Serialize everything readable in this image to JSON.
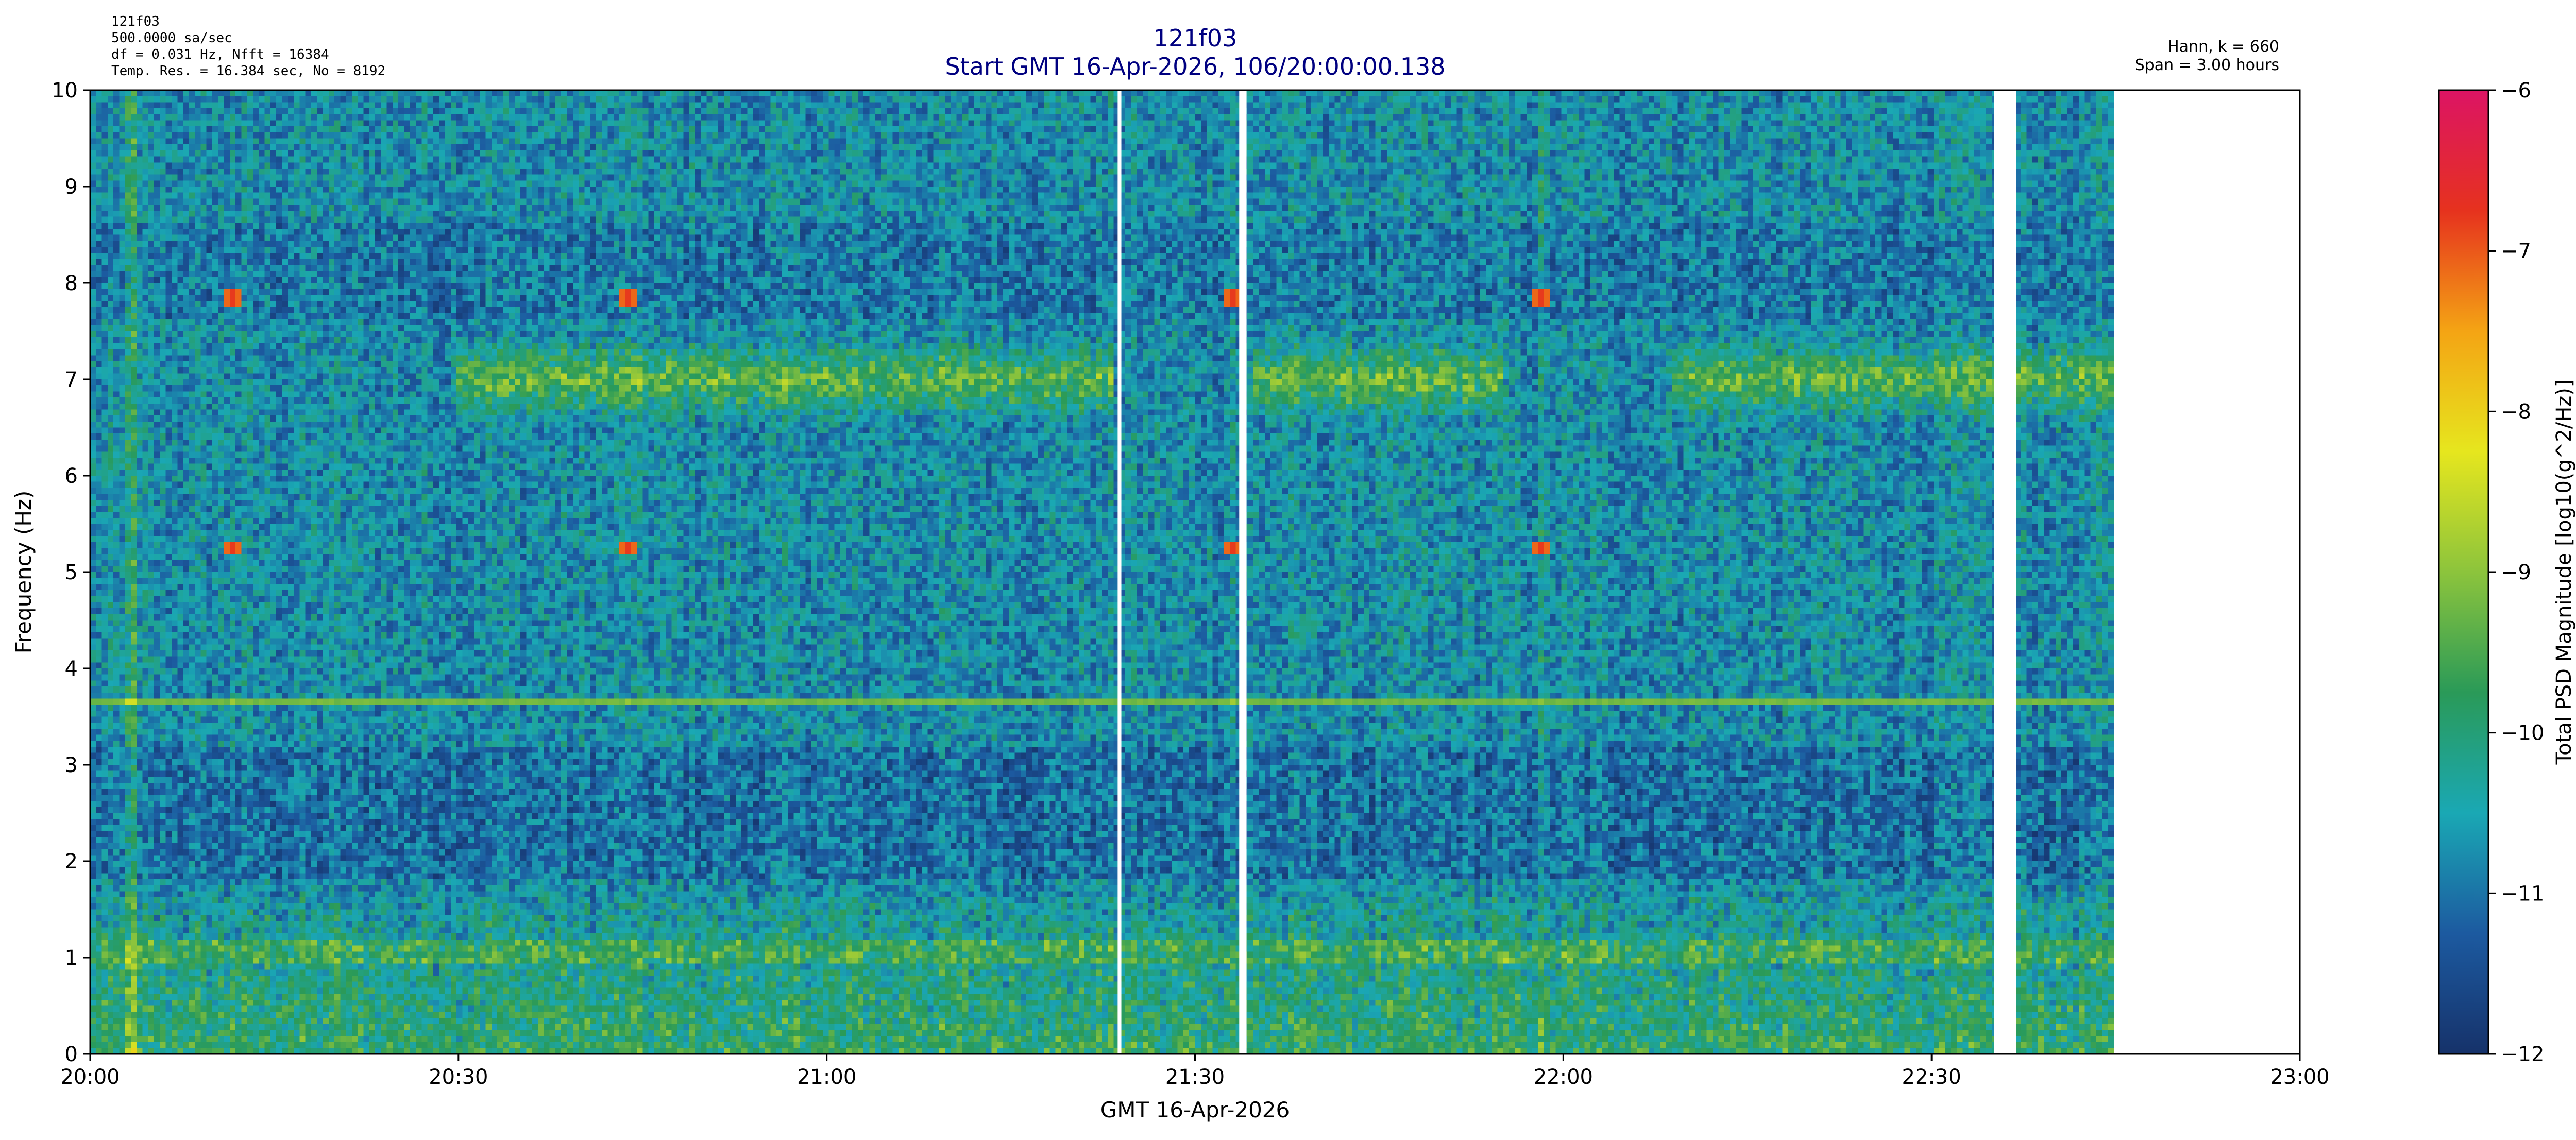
{
  "chart_data": {
    "type": "heatmap",
    "title": "121f03",
    "subtitle": "Start GMT 16-Apr-2026, 106/20:00:00.138",
    "info_left": [
      "121f03",
      "500.0000 sa/sec",
      "df = 0.031 Hz,  Nfft = 16384",
      "Temp. Res. = 16.384 sec, No = 8192"
    ],
    "info_right": [
      "Hann, k = 660",
      "Span = 3.00 hours"
    ],
    "xlabel": "GMT 16-Apr-2026",
    "ylabel": "Frequency (Hz)",
    "x_ticks": [
      "20:00",
      "20:30",
      "21:00",
      "21:30",
      "22:00",
      "22:30",
      "23:00"
    ],
    "x_range_hours": [
      20.0,
      23.0
    ],
    "y_ticks": [
      "0",
      "1",
      "2",
      "3",
      "4",
      "5",
      "6",
      "7",
      "8",
      "9",
      "10"
    ],
    "ylim": [
      0,
      10
    ],
    "colorbar": {
      "label": "Total PSD Magnitude [log10(g^2/Hz)]",
      "range": [
        -12,
        -6
      ],
      "ticks": [
        "−12",
        "−11",
        "−10",
        "−9",
        "−8",
        "−7",
        "−6"
      ]
    },
    "data_end_hours": 22.745,
    "data_gaps_hours": [
      [
        21.395,
        21.4
      ],
      [
        21.56,
        21.57
      ],
      [
        22.585,
        22.615
      ]
    ],
    "features": {
      "constant_line_hz": 3.65,
      "vertical_line_hours": 20.055,
      "band_7hz_segments_hours": [
        [
          20.5,
          21.39
        ],
        [
          21.58,
          21.92
        ],
        [
          22.15,
          22.745
        ]
      ],
      "red_spike_hours": [
        20.195,
        20.73,
        21.55,
        21.97
      ],
      "red_spike_freqs_hz": [
        5.25,
        7.85
      ]
    },
    "colors": {
      "plot_background": "#ffffff",
      "text_title": "#000080",
      "colormap": [
        "#16326a",
        "#1c5aa0",
        "#1aa8b4",
        "#2a9a58",
        "#8cc43c",
        "#e6e61e",
        "#f4a414",
        "#e6321e",
        "#dc1464"
      ]
    }
  }
}
